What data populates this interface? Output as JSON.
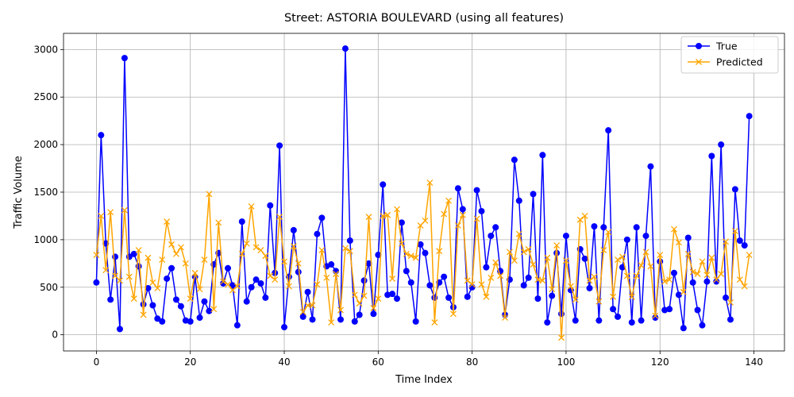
{
  "chart_data": {
    "type": "line",
    "title": "Street: ASTORIA BOULEVARD (using all features)",
    "xlabel": "Time Index",
    "ylabel": "Traffic Volume",
    "xlim": [
      -7,
      146.5
    ],
    "ylim": [
      -170,
      3170
    ],
    "xticks": [
      0,
      20,
      40,
      60,
      80,
      100,
      120,
      140
    ],
    "yticks": [
      0,
      500,
      1000,
      1500,
      2000,
      2500,
      3000
    ],
    "grid": true,
    "legend": "top-right",
    "series": [
      {
        "name": "True",
        "color": "#0000ff",
        "marker": "circle",
        "values": [
          550,
          2100,
          960,
          370,
          820,
          60,
          2910,
          820,
          850,
          720,
          320,
          490,
          310,
          170,
          140,
          590,
          700,
          370,
          300,
          150,
          140,
          610,
          180,
          350,
          250,
          740,
          860,
          540,
          700,
          520,
          100,
          1190,
          350,
          500,
          580,
          540,
          390,
          1360,
          650,
          1990,
          80,
          610,
          1100,
          660,
          190,
          450,
          160,
          1060,
          1230,
          720,
          740,
          670,
          160,
          3010,
          990,
          140,
          210,
          570,
          750,
          220,
          840,
          1580,
          420,
          430,
          380,
          1180,
          670,
          550,
          140,
          950,
          860,
          520,
          390,
          550,
          610,
          390,
          290,
          1540,
          1320,
          400,
          500,
          1520,
          1300,
          710,
          1040,
          1130,
          670,
          210,
          580,
          1840,
          1410,
          520,
          600,
          1480,
          380,
          1890,
          130,
          410,
          860,
          220,
          1040,
          470,
          150,
          900,
          800,
          490,
          1140,
          150,
          1130,
          2150,
          270,
          190,
          710,
          1000,
          130,
          1130,
          150,
          1040,
          1770,
          180,
          770,
          260,
          270,
          650,
          420,
          70,
          1020,
          550,
          260,
          100,
          560,
          1880,
          560,
          2000,
          390,
          160,
          1530,
          990,
          940,
          2300
        ]
      },
      {
        "name": "Predicted",
        "color": "#ffa500",
        "marker": "x",
        "values": [
          840,
          1250,
          680,
          1290,
          620,
          570,
          1310,
          610,
          380,
          890,
          210,
          810,
          550,
          490,
          790,
          1190,
          950,
          850,
          920,
          750,
          380,
          650,
          480,
          790,
          1480,
          270,
          1180,
          560,
          530,
          470,
          510,
          850,
          960,
          1350,
          920,
          890,
          830,
          620,
          580,
          1240,
          770,
          510,
          930,
          750,
          240,
          310,
          310,
          530,
          890,
          600,
          130,
          640,
          260,
          910,
          880,
          420,
          330,
          410,
          1240,
          280,
          380,
          1250,
          1260,
          590,
          1320,
          960,
          850,
          830,
          810,
          1150,
          1200,
          1600,
          130,
          880,
          1270,
          1410,
          220,
          1150,
          1260,
          570,
          530,
          1220,
          530,
          400,
          600,
          760,
          620,
          180,
          870,
          780,
          1060,
          870,
          900,
          740,
          580,
          570,
          810,
          480,
          940,
          -30,
          780,
          510,
          370,
          1210,
          1250,
          570,
          610,
          350,
          890,
          1080,
          400,
          790,
          820,
          620,
          400,
          620,
          730,
          870,
          720,
          200,
          840,
          560,
          580,
          1110,
          970,
          450,
          850,
          660,
          640,
          770,
          630,
          810,
          580,
          640,
          980,
          340,
          1090,
          580,
          510,
          840
        ]
      }
    ]
  }
}
